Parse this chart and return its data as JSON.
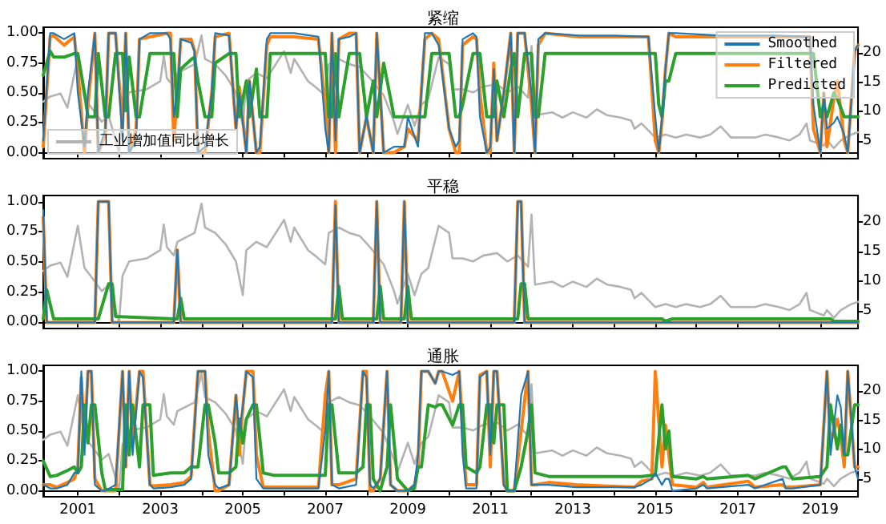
{
  "chart_data": [
    {
      "type": "line",
      "title": "紧缩",
      "marker": "none",
      "legend": "top right",
      "tick_labels": "y",
      "xlim": [
        "2000-03",
        "2019-12"
      ],
      "xticks": [
        {
          "value": "2001",
          "label": null
        },
        {
          "value": "2002",
          "label": null
        },
        {
          "value": "2003",
          "label": null
        },
        {
          "value": "2004",
          "label": null
        },
        {
          "value": "2005",
          "label": null
        },
        {
          "value": "2006",
          "label": null
        },
        {
          "value": "2007",
          "label": null
        },
        {
          "value": "2008",
          "label": null
        },
        {
          "value": "2009",
          "label": null
        },
        {
          "value": "2010",
          "label": null
        },
        {
          "value": "2011",
          "label": null
        },
        {
          "value": "2012",
          "label": null
        },
        {
          "value": "2013",
          "label": null
        },
        {
          "value": "2014",
          "label": null
        },
        {
          "value": "2015",
          "label": null
        },
        {
          "value": "2016",
          "label": null
        },
        {
          "value": "2017",
          "label": null
        },
        {
          "value": "2018",
          "label": null
        },
        {
          "value": "2019",
          "label": null
        }
      ],
      "ylim": [
        -0.05,
        1.05
      ],
      "yticks": [
        {
          "value": 0,
          "label": "0.00"
        },
        {
          "value": 0.25,
          "label": "0.25"
        },
        {
          "value": 0.5,
          "label": "0.50"
        },
        {
          "value": 0.75,
          "label": "0.75"
        },
        {
          "value": 1,
          "label": "1.00"
        }
      ],
      "y2lim": [
        2.0,
        24.4
      ],
      "y2ticks": [
        5,
        10,
        15,
        20
      ],
      "x": [
        "2000-03",
        "2000-05",
        "2000-06",
        "2000-09",
        "2000-12",
        "2001-01",
        "2001-03",
        "2001-04",
        "2001-06",
        "2001-07",
        "2001-09",
        "2001-10",
        "2001-12",
        "2002-02",
        "2002-03",
        "2002-04",
        "2002-06",
        "2002-07",
        "2002-10",
        "2003-03",
        "2003-04",
        "2003-05",
        "2003-06",
        "2003-07",
        "2003-10",
        "2003-11",
        "2003-12",
        "2004-02",
        "2004-04",
        "2004-05",
        "2004-09",
        "2004-11",
        "2004-12",
        "2005-02",
        "2005-03",
        "2005-05",
        "2005-06",
        "2005-08",
        "2005-09",
        "2006-04",
        "2006-11",
        "2007-01",
        "2007-02",
        "2007-03",
        "2007-04",
        "2007-05",
        "2007-08",
        "2007-10",
        "2007-11",
        "2008-01",
        "2008-03",
        "2008-04",
        "2008-06",
        "2008-09",
        "2008-12",
        "2009-01",
        "2009-04",
        "2009-06",
        "2009-08",
        "2009-10",
        "2010-01",
        "2010-03",
        "2010-04",
        "2010-05",
        "2010-08",
        "2010-09",
        "2010-10",
        "2010-12",
        "2011-01",
        "2011-02",
        "2011-03",
        "2011-05",
        "2011-07",
        "2011-08",
        "2011-09",
        "2011-11",
        "2012-01",
        "2012-02",
        "2012-03",
        "2012-05",
        "2013-03",
        "2014-01",
        "2014-11",
        "2015-01",
        "2015-02",
        "2015-03",
        "2015-04",
        "2015-05",
        "2015-07",
        "2016-08",
        "2017-12",
        "2018-10",
        "2018-11",
        "2019-01",
        "2019-02",
        "2019-03",
        "2019-05",
        "2019-06",
        "2019-08",
        "2019-09",
        "2019-11",
        "2019-12"
      ],
      "series": [
        {
          "name": "工业增加值同比增长",
          "color": "#b3b3b3",
          "axis": "y2",
          "x": [
            "2000-03",
            "2000-05",
            "2000-08",
            "2000-10",
            "2001-01",
            "2001-03",
            "2001-05",
            "2001-08",
            "2001-10",
            "2002-01",
            "2002-02",
            "2002-04",
            "2002-09",
            "2003-01",
            "2003-02",
            "2003-03",
            "2003-05",
            "2003-06",
            "2003-11",
            "2004-01",
            "2004-02",
            "2004-05",
            "2004-08",
            "2004-11",
            "2005-01",
            "2005-02",
            "2005-05",
            "2005-08",
            "2006-01",
            "2006-03",
            "2006-04",
            "2006-08",
            "2006-10",
            "2007-01",
            "2007-02",
            "2007-05",
            "2007-08",
            "2007-11",
            "2008-02",
            "2008-06",
            "2008-09",
            "2008-10",
            "2009-01",
            "2009-03",
            "2009-05",
            "2009-07",
            "2009-10",
            "2010-01",
            "2010-02",
            "2010-05",
            "2010-08",
            "2010-11",
            "2011-03",
            "2011-06",
            "2011-09",
            "2011-12",
            "2012-01",
            "2012-02",
            "2012-07",
            "2012-10",
            "2013-01",
            "2013-05",
            "2013-08",
            "2013-11",
            "2014-03",
            "2014-06",
            "2014-07",
            "2014-09",
            "2015-01",
            "2015-04",
            "2015-07",
            "2015-10",
            "2016-02",
            "2016-05",
            "2016-08",
            "2016-11",
            "2017-03",
            "2017-06",
            "2017-09",
            "2018-01",
            "2018-04",
            "2018-07",
            "2018-09",
            "2018-10",
            "2019-02",
            "2019-03",
            "2019-05",
            "2019-07",
            "2019-10",
            "2019-12"
          ],
          "values": [
            11.7,
            12.6,
            13.1,
            10.7,
            19.3,
            12.2,
            10.7,
            8.3,
            9.3,
            3.1,
            10.9,
            13.3,
            13.8,
            15.2,
            19.5,
            15.7,
            14.3,
            16.6,
            18.1,
            23.0,
            19.0,
            18.1,
            16.2,
            13.3,
            7.6,
            15.2,
            16.6,
            15.7,
            20.3,
            16.6,
            19.0,
            15.2,
            14.3,
            12.8,
            18.1,
            19.0,
            18.1,
            17.6,
            15.7,
            12.8,
            8.3,
            6.2,
            11.2,
            7.6,
            11.2,
            12.2,
            19.3,
            18.1,
            13.8,
            13.8,
            13.3,
            14.3,
            14.7,
            13.3,
            14.3,
            12.4,
            21.2,
            9.4,
            9.9,
            9.0,
            9.9,
            9.0,
            10.4,
            9.4,
            9.0,
            8.5,
            7.1,
            8.0,
            5.6,
            6.1,
            5.6,
            6.1,
            5.6,
            6.1,
            7.5,
            5.6,
            5.6,
            5.6,
            6.1,
            5.6,
            5.1,
            6.1,
            8.0,
            5.1,
            4.2,
            5.1,
            3.8,
            5.1,
            6.1,
            6.5
          ]
        },
        {
          "name": "Smoothed",
          "color": "#1f77b4",
          "values": [
            0.1,
            1,
            1,
            0.95,
            1,
            0.5,
            0.05,
            0.5,
            1,
            0,
            0.2,
            1,
            1,
            0.1,
            1,
            0,
            0.1,
            0.95,
            1,
            1,
            0.95,
            0.3,
            0.5,
            0.95,
            0.92,
            0.85,
            0,
            0.05,
            0.5,
            1,
            0.98,
            0.2,
            0.5,
            0,
            0.6,
            0,
            0.05,
            0.95,
            1,
            1,
            0.97,
            0.2,
            0,
            1,
            0.1,
            0.95,
            0.97,
            1,
            0,
            0.3,
            0,
            1,
            0,
            0.05,
            0.05,
            0.3,
            0.05,
            1,
            1,
            0.9,
            0.2,
            0.05,
            0.1,
            0.95,
            1,
            0.97,
            0.3,
            0,
            0.05,
            0.7,
            0.1,
            0.5,
            1,
            0,
            1,
            1,
            0.5,
            0,
            0.95,
            1,
            0.98,
            0.98,
            0.97,
            0.3,
            0,
            0.3,
            0.7,
            1,
            1,
            0.98,
            0.98,
            0.97,
            0.4,
            0,
            0.5,
            0.2,
            0.25,
            0.3,
            0.15,
            0,
            0.85,
            0.9
          ]
        },
        {
          "name": "Filtered",
          "color": "#ff7f0e",
          "values": [
            0.05,
            0.97,
            0.98,
            0.9,
            0.97,
            0.7,
            0,
            0.4,
            1,
            0,
            0.15,
            1,
            1,
            0.2,
            1,
            0,
            0.2,
            0.95,
            0.97,
            1,
            1,
            0.1,
            0.5,
            0.95,
            0.95,
            0.85,
            0,
            0,
            0.5,
            0.97,
            1,
            0.2,
            0.55,
            0,
            0.6,
            0,
            0,
            0.9,
            0.97,
            0.97,
            0.95,
            0.4,
            0,
            1,
            0,
            0.95,
            1,
            1,
            0,
            0.3,
            0,
            1,
            0,
            0,
            0.05,
            0.2,
            0.1,
            0.95,
            1,
            0.95,
            0.2,
            0,
            0,
            0.9,
            0.97,
            0.95,
            0.5,
            0,
            0,
            0.75,
            0.1,
            0.5,
            1,
            0,
            1,
            1,
            0.4,
            0,
            0.9,
            1,
            0.97,
            0.97,
            0.97,
            0.1,
            0,
            0.25,
            0.7,
            1,
            0.97,
            0.97,
            0.97,
            0.97,
            0.2,
            0,
            0.5,
            0.05,
            0.45,
            0.6,
            0.1,
            0,
            0.85,
            0.9
          ]
        },
        {
          "name": "Predicted",
          "color": "#2ca02c",
          "values": [
            0.65,
            0.85,
            0.8,
            0.8,
            0.83,
            0.83,
            0.5,
            0.3,
            0.3,
            0.83,
            0.3,
            0.3,
            0.83,
            0.83,
            0.35,
            0.8,
            0.3,
            0.3,
            0.83,
            0.83,
            0.83,
            0.83,
            0.3,
            0.7,
            0.78,
            0.8,
            0.6,
            0.3,
            0.3,
            0.75,
            0.83,
            0.83,
            0.3,
            0.6,
            0.3,
            0.7,
            0.3,
            0.3,
            0.83,
            0.83,
            0.83,
            0.83,
            0.3,
            0.3,
            0.83,
            0.3,
            0.83,
            0.83,
            0.83,
            0.3,
            0.6,
            0.3,
            0.75,
            0.3,
            0.3,
            0.3,
            0.3,
            0.3,
            0.83,
            0.83,
            0.83,
            0.3,
            0.3,
            0.4,
            0.83,
            0.83,
            0.83,
            0.3,
            0.3,
            0.3,
            0.6,
            0.3,
            0.7,
            0.83,
            0.3,
            0.83,
            0.83,
            0.3,
            0.3,
            0.83,
            0.83,
            0.83,
            0.83,
            0.83,
            0.4,
            0.3,
            0.6,
            0.6,
            0.83,
            0.83,
            0.83,
            0.83,
            0.83,
            0.3,
            0.4,
            0.3,
            0.5,
            0.45,
            0.3,
            0.3,
            0.3,
            0.3
          ]
        }
      ]
    },
    {
      "type": "line",
      "title": "平稳",
      "marker": "none",
      "tick_labels": "y",
      "xlim": [
        "2000-03",
        "2019-12"
      ],
      "xticks": [
        {
          "value": "2001",
          "label": null
        },
        {
          "value": "2002",
          "label": null
        },
        {
          "value": "2003",
          "label": null
        },
        {
          "value": "2004",
          "label": null
        },
        {
          "value": "2005",
          "label": null
        },
        {
          "value": "2006",
          "label": null
        },
        {
          "value": "2007",
          "label": null
        },
        {
          "value": "2008",
          "label": null
        },
        {
          "value": "2009",
          "label": null
        },
        {
          "value": "2010",
          "label": null
        },
        {
          "value": "2011",
          "label": null
        },
        {
          "value": "2012",
          "label": null
        },
        {
          "value": "2013",
          "label": null
        },
        {
          "value": "2014",
          "label": null
        },
        {
          "value": "2015",
          "label": null
        },
        {
          "value": "2016",
          "label": null
        },
        {
          "value": "2017",
          "label": null
        },
        {
          "value": "2018",
          "label": null
        },
        {
          "value": "2019",
          "label": null
        }
      ],
      "ylim": [
        -0.05,
        1.05
      ],
      "yticks": [
        {
          "value": 0,
          "label": "0.00"
        },
        {
          "value": 0.25,
          "label": "0.25"
        },
        {
          "value": 0.5,
          "label": "0.50"
        },
        {
          "value": 0.75,
          "label": "0.75"
        },
        {
          "value": 1,
          "label": "1.00"
        }
      ],
      "y2lim": [
        2.0,
        24.4
      ],
      "y2ticks": [
        5,
        10,
        15,
        20
      ],
      "x": [
        "2000-03",
        "2000-04",
        "2000-06",
        "2001-06",
        "2001-07",
        "2001-10",
        "2001-11",
        "2001-12",
        "2003-05",
        "2003-06",
        "2003-07",
        "2003-08",
        "2007-03",
        "2007-04",
        "2007-05",
        "2007-06",
        "2008-03",
        "2008-04",
        "2008-05",
        "2008-06",
        "2008-11",
        "2008-12",
        "2009-01",
        "2009-02",
        "2011-08",
        "2011-09",
        "2011-10",
        "2011-11",
        "2011-12",
        "2015-03",
        "2015-04",
        "2015-06",
        "2019-04",
        "2019-05",
        "2019-12"
      ],
      "series": [
        {
          "color": "#b3b3b3",
          "axis": "y2",
          "x": [
            "2000-03",
            "2000-05",
            "2000-08",
            "2000-10",
            "2001-01",
            "2001-03",
            "2001-05",
            "2001-08",
            "2001-10",
            "2002-01",
            "2002-02",
            "2002-04",
            "2002-09",
            "2003-01",
            "2003-02",
            "2003-03",
            "2003-05",
            "2003-06",
            "2003-11",
            "2004-01",
            "2004-02",
            "2004-05",
            "2004-08",
            "2004-11",
            "2005-01",
            "2005-02",
            "2005-05",
            "2005-08",
            "2006-01",
            "2006-03",
            "2006-04",
            "2006-08",
            "2006-10",
            "2007-01",
            "2007-02",
            "2007-05",
            "2007-08",
            "2007-11",
            "2008-02",
            "2008-06",
            "2008-09",
            "2008-10",
            "2009-01",
            "2009-03",
            "2009-05",
            "2009-07",
            "2009-10",
            "2010-01",
            "2010-02",
            "2010-05",
            "2010-08",
            "2010-11",
            "2011-03",
            "2011-06",
            "2011-09",
            "2011-12",
            "2012-01",
            "2012-02",
            "2012-07",
            "2012-10",
            "2013-01",
            "2013-05",
            "2013-08",
            "2013-11",
            "2014-03",
            "2014-06",
            "2014-07",
            "2014-09",
            "2015-01",
            "2015-04",
            "2015-07",
            "2015-10",
            "2016-02",
            "2016-05",
            "2016-08",
            "2016-11",
            "2017-03",
            "2017-06",
            "2017-09",
            "2018-01",
            "2018-04",
            "2018-07",
            "2018-09",
            "2018-10",
            "2019-02",
            "2019-03",
            "2019-05",
            "2019-07",
            "2019-10",
            "2019-12"
          ],
          "values": [
            11.7,
            12.6,
            13.1,
            10.7,
            19.3,
            12.2,
            10.7,
            8.3,
            9.3,
            3.1,
            10.9,
            13.3,
            13.8,
            15.2,
            19.5,
            15.7,
            14.3,
            16.6,
            18.1,
            23.0,
            19.0,
            18.1,
            16.2,
            13.3,
            7.6,
            15.2,
            16.6,
            15.7,
            20.3,
            16.6,
            19.0,
            15.2,
            14.3,
            12.8,
            18.1,
            19.0,
            18.1,
            17.6,
            15.7,
            12.8,
            8.3,
            6.2,
            11.2,
            7.6,
            11.2,
            12.2,
            19.3,
            18.1,
            13.8,
            13.8,
            13.3,
            14.3,
            14.7,
            13.3,
            14.3,
            12.4,
            21.2,
            9.4,
            9.9,
            9.0,
            9.9,
            9.0,
            10.4,
            9.4,
            9.0,
            8.5,
            7.1,
            8.0,
            5.6,
            6.1,
            5.6,
            6.1,
            5.6,
            6.1,
            7.5,
            5.6,
            5.6,
            5.6,
            6.1,
            5.6,
            5.1,
            6.1,
            8.0,
            5.1,
            4.2,
            5.1,
            3.8,
            5.1,
            6.1,
            6.5
          ]
        },
        {
          "color": "#1f77b4",
          "values": [
            0.93,
            0,
            0,
            0,
            1,
            1,
            0,
            0,
            0,
            0.6,
            0,
            0,
            0,
            0.97,
            0,
            0,
            0,
            1,
            0,
            0,
            0,
            1,
            0,
            0,
            0,
            1,
            1,
            0,
            0,
            0,
            0,
            0,
            0,
            0,
            0
          ]
        },
        {
          "color": "#ff7f0e",
          "values": [
            0.87,
            0,
            0,
            0,
            1,
            1,
            0,
            0,
            0,
            0.6,
            0,
            0,
            0,
            1,
            0,
            0,
            0,
            1,
            0,
            0,
            0,
            1,
            0,
            0,
            0,
            1,
            1,
            0,
            0,
            0,
            0,
            0,
            0,
            0,
            0
          ]
        },
        {
          "color": "#2ca02c",
          "values": [
            0.03,
            0.27,
            0.03,
            0.03,
            0.03,
            0.32,
            0.32,
            0.05,
            0.03,
            0.03,
            0.2,
            0.03,
            0.03,
            0.03,
            0.3,
            0.03,
            0.03,
            0.03,
            0.3,
            0.03,
            0.03,
            0.03,
            0.3,
            0.03,
            0.03,
            0.03,
            0.32,
            0.32,
            0.03,
            0.03,
            0.01,
            0.03,
            0.03,
            0.01,
            0.01
          ]
        }
      ]
    },
    {
      "type": "line",
      "title": "通胀",
      "marker": "none",
      "xlim": [
        "2000-03",
        "2019-12"
      ],
      "xticks": [
        {
          "value": "2001",
          "label": "2001"
        },
        {
          "value": "2002",
          "label": null
        },
        {
          "value": "2003",
          "label": "2003"
        },
        {
          "value": "2004",
          "label": null
        },
        {
          "value": "2005",
          "label": "2005"
        },
        {
          "value": "2006",
          "label": null
        },
        {
          "value": "2007",
          "label": "2007"
        },
        {
          "value": "2008",
          "label": null
        },
        {
          "value": "2009",
          "label": "2009"
        },
        {
          "value": "2010",
          "label": null
        },
        {
          "value": "2011",
          "label": "2011"
        },
        {
          "value": "2012",
          "label": null
        },
        {
          "value": "2013",
          "label": "2013"
        },
        {
          "value": "2014",
          "label": null
        },
        {
          "value": "2015",
          "label": "2015"
        },
        {
          "value": "2016",
          "label": null
        },
        {
          "value": "2017",
          "label": "2017"
        },
        {
          "value": "2018",
          "label": null
        },
        {
          "value": "2019",
          "label": "2019"
        }
      ],
      "ylim": [
        -0.05,
        1.05
      ],
      "yticks": [
        {
          "value": 0,
          "label": "0.00"
        },
        {
          "value": 0.25,
          "label": "0.25"
        },
        {
          "value": 0.5,
          "label": "0.50"
        },
        {
          "value": 0.75,
          "label": "0.75"
        },
        {
          "value": 1,
          "label": "1.00"
        }
      ],
      "y2lim": [
        2.0,
        24.4
      ],
      "y2ticks": [
        5,
        10,
        15,
        20
      ],
      "x": [
        "2000-03",
        "2000-05",
        "2000-07",
        "2000-10",
        "2000-12",
        "2001-01",
        "2001-02",
        "2001-03",
        "2001-04",
        "2001-05",
        "2001-06",
        "2001-08",
        "2001-09",
        "2001-12",
        "2002-02",
        "2002-03",
        "2002-04",
        "2002-05",
        "2002-07",
        "2002-08",
        "2002-10",
        "2002-11",
        "2003-04",
        "2003-08",
        "2003-10",
        "2003-12",
        "2004-02",
        "2004-03",
        "2004-05",
        "2004-06",
        "2004-09",
        "2004-11",
        "2004-12",
        "2005-01",
        "2005-02",
        "2005-04",
        "2005-05",
        "2005-07",
        "2005-10",
        "2006-11",
        "2007-01",
        "2007-02",
        "2007-03",
        "2007-05",
        "2007-10",
        "2007-12",
        "2008-01",
        "2008-02",
        "2008-03",
        "2008-05",
        "2008-07",
        "2008-08",
        "2008-10",
        "2009-01",
        "2009-03",
        "2009-04",
        "2009-05",
        "2009-07",
        "2009-09",
        "2009-10",
        "2009-11",
        "2010-02",
        "2010-04",
        "2010-05",
        "2010-06",
        "2010-09",
        "2010-10",
        "2010-12",
        "2011-01",
        "2011-02",
        "2011-03",
        "2011-05",
        "2011-06",
        "2011-08",
        "2011-10",
        "2011-12",
        "2012-01",
        "2012-02",
        "2012-06",
        "2013-02",
        "2014-07",
        "2014-09",
        "2014-12",
        "2015-01",
        "2015-03",
        "2015-04",
        "2015-05",
        "2015-06",
        "2016-01",
        "2016-03",
        "2016-04",
        "2017-04",
        "2017-06",
        "2018-02",
        "2018-03",
        "2018-05",
        "2019-01",
        "2019-03",
        "2019-04",
        "2019-06",
        "2019-07",
        "2019-08",
        "2019-09",
        "2019-11",
        "2019-12"
      ],
      "series": [
        {
          "color": "#b3b3b3",
          "axis": "y2",
          "x": [
            "2000-03",
            "2000-05",
            "2000-08",
            "2000-10",
            "2001-01",
            "2001-03",
            "2001-05",
            "2001-08",
            "2001-10",
            "2002-01",
            "2002-02",
            "2002-04",
            "2002-09",
            "2003-01",
            "2003-02",
            "2003-03",
            "2003-05",
            "2003-06",
            "2003-11",
            "2004-01",
            "2004-02",
            "2004-05",
            "2004-08",
            "2004-11",
            "2005-01",
            "2005-02",
            "2005-05",
            "2005-08",
            "2006-01",
            "2006-03",
            "2006-04",
            "2006-08",
            "2006-10",
            "2007-01",
            "2007-02",
            "2007-05",
            "2007-08",
            "2007-11",
            "2008-02",
            "2008-06",
            "2008-09",
            "2008-10",
            "2009-01",
            "2009-03",
            "2009-05",
            "2009-07",
            "2009-10",
            "2010-01",
            "2010-02",
            "2010-05",
            "2010-08",
            "2010-11",
            "2011-03",
            "2011-06",
            "2011-09",
            "2011-12",
            "2012-01",
            "2012-02",
            "2012-07",
            "2012-10",
            "2013-01",
            "2013-05",
            "2013-08",
            "2013-11",
            "2014-03",
            "2014-06",
            "2014-07",
            "2014-09",
            "2015-01",
            "2015-04",
            "2015-07",
            "2015-10",
            "2016-02",
            "2016-05",
            "2016-08",
            "2016-11",
            "2017-03",
            "2017-06",
            "2017-09",
            "2018-01",
            "2018-04",
            "2018-07",
            "2018-09",
            "2018-10",
            "2019-02",
            "2019-03",
            "2019-05",
            "2019-07",
            "2019-10",
            "2019-12"
          ],
          "values": [
            11.7,
            12.6,
            13.1,
            10.7,
            19.3,
            12.2,
            10.7,
            8.3,
            9.3,
            3.1,
            10.9,
            13.3,
            13.8,
            15.2,
            19.5,
            15.7,
            14.3,
            16.6,
            18.1,
            23.0,
            19.0,
            18.1,
            16.2,
            13.3,
            7.6,
            15.2,
            16.6,
            15.7,
            20.3,
            16.6,
            19.0,
            15.2,
            14.3,
            12.8,
            18.1,
            19.0,
            18.1,
            17.6,
            15.7,
            12.8,
            8.3,
            6.2,
            11.2,
            7.6,
            11.2,
            12.2,
            19.3,
            18.1,
            13.8,
            13.8,
            13.3,
            14.3,
            14.7,
            13.3,
            14.3,
            12.4,
            21.2,
            9.4,
            9.9,
            9.0,
            9.9,
            9.0,
            10.4,
            9.4,
            9.0,
            8.5,
            7.1,
            8.0,
            5.6,
            6.1,
            5.6,
            6.1,
            5.6,
            6.1,
            7.5,
            5.6,
            5.6,
            5.6,
            6.1,
            5.6,
            5.1,
            6.1,
            8.0,
            5.1,
            4.2,
            5.1,
            3.8,
            5.1,
            6.1,
            6.5
          ]
        },
        {
          "color": "#1f77b4",
          "values": [
            0.05,
            0.02,
            0.02,
            0.05,
            0.15,
            0.15,
            1,
            0.3,
            1,
            1,
            0.05,
            0,
            0,
            0.05,
            1,
            0.2,
            1,
            0.3,
            1,
            0.95,
            0.05,
            0.02,
            0.03,
            0.05,
            0.1,
            1,
            1,
            0.3,
            0.05,
            0.02,
            0.05,
            0.8,
            0.5,
            0.7,
            1,
            0.95,
            0.1,
            0.02,
            0.02,
            0.02,
            0.5,
            1,
            0.05,
            0.02,
            0.05,
            1,
            0.95,
            0.05,
            0.02,
            0.1,
            1,
            0.05,
            0,
            0,
            0.05,
            0.3,
            1,
            1,
            0.9,
            1,
            1,
            0.97,
            1,
            0.3,
            0.02,
            0.02,
            0.95,
            1,
            0.3,
            1,
            1,
            0.05,
            0,
            0,
            0.8,
            1,
            0.05,
            0.05,
            0.05,
            0.03,
            0.03,
            0.05,
            0.1,
            0.15,
            0.05,
            0.1,
            0.1,
            0,
            0.02,
            0.05,
            0.02,
            0.05,
            0.02,
            0.1,
            0.02,
            0.02,
            0.05,
            1,
            0.3,
            0.8,
            0.7,
            0.3,
            1,
            0.2,
            0.1
          ]
        },
        {
          "color": "#ff7f0e",
          "values": [
            0.05,
            0.05,
            0.03,
            0.07,
            0.1,
            0.2,
            0.95,
            0.4,
            1,
            1,
            0.1,
            0,
            0,
            0,
            1,
            0.2,
            1,
            0.4,
            1,
            1,
            0.05,
            0.04,
            0.05,
            0.07,
            0.12,
            1,
            1,
            0.5,
            0,
            0,
            0.05,
            0.8,
            0.3,
            0.7,
            1,
            1,
            0.3,
            0.03,
            0.03,
            0.03,
            0.8,
            1,
            0.05,
            0.05,
            0.1,
            1,
            1,
            0,
            0,
            0.1,
            1,
            0.05,
            0,
            0,
            0.05,
            0.2,
            1,
            1,
            0.9,
            1,
            1,
            0.75,
            1,
            0.5,
            0.05,
            0.05,
            0.97,
            1,
            0.2,
            1,
            1,
            0.05,
            0,
            0,
            0.5,
            1,
            0.05,
            0.05,
            0.07,
            0.05,
            0.03,
            0.08,
            0.1,
            1,
            0.2,
            0.55,
            0.3,
            0.05,
            0.03,
            0.07,
            0.03,
            0.08,
            0.03,
            0.05,
            0.03,
            0.03,
            0.05,
            1,
            0.4,
            0.6,
            0.45,
            0.2,
            1,
            0.2,
            0.2
          ]
        },
        {
          "color": "#2ca02c",
          "values": [
            0.25,
            0.12,
            0.13,
            0.17,
            0.2,
            0.15,
            0.2,
            0.72,
            0.4,
            0.72,
            0.72,
            0.15,
            0.01,
            0.01,
            0.01,
            0.72,
            0.3,
            0.72,
            0.2,
            0.72,
            0.72,
            0.13,
            0.15,
            0.15,
            0.2,
            0.2,
            0.72,
            0.72,
            0.4,
            0.15,
            0.15,
            0.2,
            0.6,
            0.4,
            0.6,
            0.72,
            0.72,
            0.15,
            0.13,
            0.13,
            0.13,
            0.72,
            0.72,
            0.15,
            0.15,
            0.2,
            0.72,
            0.72,
            0.1,
            0,
            0.2,
            0.72,
            0.1,
            0,
            0.02,
            0.2,
            0.2,
            0.72,
            0.7,
            0.72,
            0.72,
            0.55,
            0.72,
            0.72,
            0.2,
            0.15,
            0.2,
            0.72,
            0.72,
            0.4,
            0.72,
            0.72,
            0,
            0,
            0.2,
            0.5,
            0.72,
            0.15,
            0.12,
            0.12,
            0.12,
            0.12,
            0.13,
            0.13,
            0.72,
            0.35,
            0.5,
            0.12,
            0.1,
            0.12,
            0.1,
            0.13,
            0.1,
            0.2,
            0.2,
            0.1,
            0.12,
            0.2,
            0.72,
            0.35,
            0.55,
            0.3,
            0.3,
            0.72,
            0.72
          ]
        }
      ]
    }
  ]
}
